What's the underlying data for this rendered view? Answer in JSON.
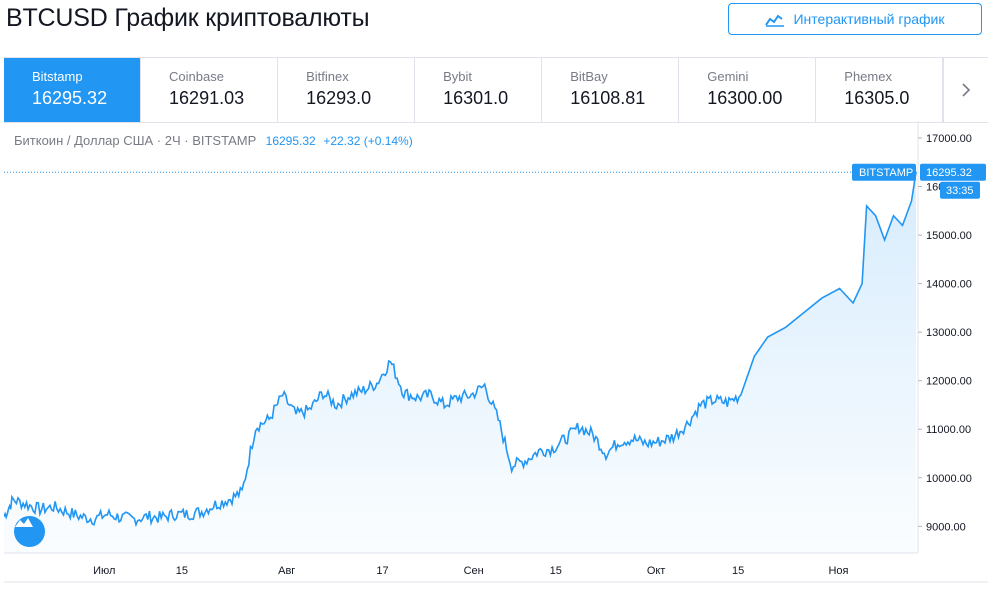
{
  "page": {
    "title": "BTCUSD График криптовалюты"
  },
  "toolbar": {
    "interactive_chart_label": "Интерактивный график",
    "icon": "chart-line-icon"
  },
  "exchanges": [
    {
      "name": "Bitstamp",
      "price": "16295.32",
      "active": true
    },
    {
      "name": "Coinbase",
      "price": "16291.03",
      "active": false
    },
    {
      "name": "Bitfinex",
      "price": "16293.0",
      "active": false
    },
    {
      "name": "Bybit",
      "price": "16301.0",
      "active": false
    },
    {
      "name": "BitBay",
      "price": "16108.81",
      "active": false
    },
    {
      "name": "Gemini",
      "price": "16300.00",
      "active": false
    },
    {
      "name": "Phemex",
      "price": "16305.0",
      "active": false
    }
  ],
  "legend": {
    "symbol": "Биткоин / Доллар США · 2Ч · BITSTAMP",
    "price": "16295.32",
    "change": "+22.32 (+0.14%)"
  },
  "price_label": {
    "exchange": "BITSTAMP",
    "price": "16295.32",
    "countdown": "33:35"
  },
  "colors": {
    "accent": "#2196f3",
    "line": "#2196f3",
    "fill": "#e3f2fd"
  },
  "chart_data": {
    "type": "area",
    "y_ticks": [
      "9000.00",
      "10000.00",
      "11000.00",
      "12000.00",
      "13000.00",
      "14000.00",
      "15000.00",
      "16000.00",
      "17000.00"
    ],
    "x_ticks": [
      "Июл",
      "15",
      "Авг",
      "17",
      "Сен",
      "15",
      "Окт",
      "15",
      "Ноя"
    ],
    "ylim": [
      8450,
      17350
    ],
    "x": [
      0,
      2,
      5,
      8,
      11,
      14,
      17,
      20,
      23,
      26,
      29,
      32,
      35,
      38,
      41,
      44,
      47,
      50,
      53,
      56,
      59,
      62,
      65,
      68,
      71,
      74,
      77,
      80,
      83,
      86,
      89,
      92,
      95,
      98,
      101,
      104,
      107,
      110,
      113,
      116,
      119,
      122,
      125,
      128,
      131,
      134,
      137,
      140,
      143,
      146,
      149,
      152,
      155,
      158,
      161,
      164
    ],
    "values": [
      9200,
      9550,
      9450,
      9350,
      9400,
      9300,
      9200,
      9150,
      9250,
      9180,
      9150,
      9200,
      9180,
      9250,
      9250,
      9300,
      9450,
      9550,
      9700,
      11050,
      11200,
      11700,
      11300,
      11400,
      11750,
      11500,
      11700,
      11800,
      11950,
      12400,
      11750,
      11650,
      11700,
      11500,
      11650,
      11700,
      11900,
      11200,
      10250,
      10350,
      10550,
      10600,
      10800,
      11050,
      10900,
      10500,
      10750,
      10800,
      10700,
      10750,
      10850,
      11100,
      11500,
      11600,
      11550,
      11700
    ],
    "grid": false
  }
}
